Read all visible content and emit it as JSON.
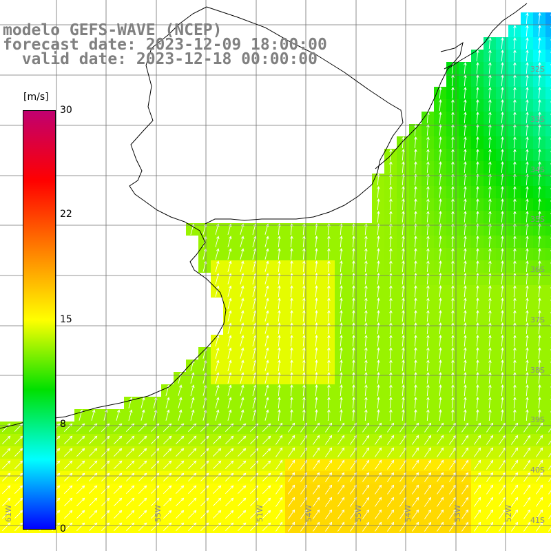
{
  "title": {
    "line1": "modelo GEFS-WAVE (NCEP)",
    "line2": "forecast date: 2023-12-09 18:00:00",
    "line3": "  valid date: 2023-12-18 00:00:00"
  },
  "colorbar": {
    "unit": "[m/s]",
    "labels": [
      "30",
      "22",
      "15",
      "8",
      "0"
    ],
    "stops": [
      "#0000ff",
      "#00ffff",
      "#00e000",
      "#ffff00",
      "#ff8000",
      "#ff0000",
      "#c00070"
    ]
  },
  "axes": {
    "lat_labels": [
      "32S",
      "33S",
      "34S",
      "35S",
      "36S",
      "37S",
      "38S",
      "39S",
      "40S",
      "41S"
    ],
    "lon_labels": [
      "61W",
      "55W",
      "54W",
      "55W",
      "54W",
      "53W",
      "52W",
      "51W"
    ]
  },
  "colors": {
    "land": "#ffffff",
    "coast": "#000000",
    "grid": "#707070",
    "arrow": "#ffffff"
  },
  "field": {
    "variable": "wind speed",
    "units": "m/s",
    "min": 0,
    "max": 30,
    "typical_values": {
      "north_east": 7,
      "central": 13,
      "south": 15
    }
  }
}
